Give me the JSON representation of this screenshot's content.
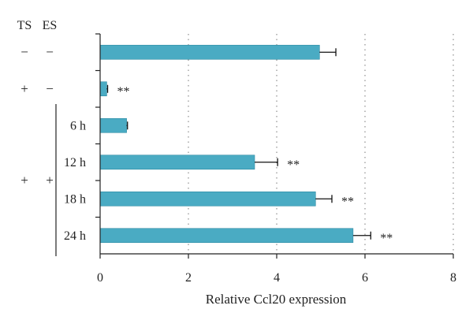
{
  "chart_data": {
    "type": "bar",
    "orientation": "horizontal",
    "title": "",
    "xlabel": "Relative Ccl20 expression",
    "ylabel": "",
    "xlim": [
      0,
      8
    ],
    "xticks": [
      0,
      2,
      4,
      6,
      8
    ],
    "grid": "vertical dotted",
    "row_headers": [
      "TS",
      "ES"
    ],
    "categories": [
      {
        "ts": "−",
        "es": "−",
        "time": ""
      },
      {
        "ts": "+",
        "es": "−",
        "time": ""
      },
      {
        "ts": "",
        "es": "",
        "time": "6 h"
      },
      {
        "ts": "",
        "es": "",
        "time": "12 h"
      },
      {
        "ts": "",
        "es": "",
        "time": "18 h"
      },
      {
        "ts": "",
        "es": "",
        "time": "24 h"
      }
    ],
    "group_labels": [
      {
        "ts": "+",
        "es": "+",
        "rows": [
          2,
          5
        ]
      }
    ],
    "values": [
      4.97,
      0.15,
      0.6,
      3.5,
      4.88,
      5.73
    ],
    "errors": [
      0.37,
      0.02,
      0.02,
      0.52,
      0.37,
      0.4
    ],
    "significance": [
      "",
      "**",
      "",
      "**",
      "**",
      "**"
    ],
    "bar_color": "#4aabc3",
    "bar_edge_color": "#2f8aa3"
  }
}
